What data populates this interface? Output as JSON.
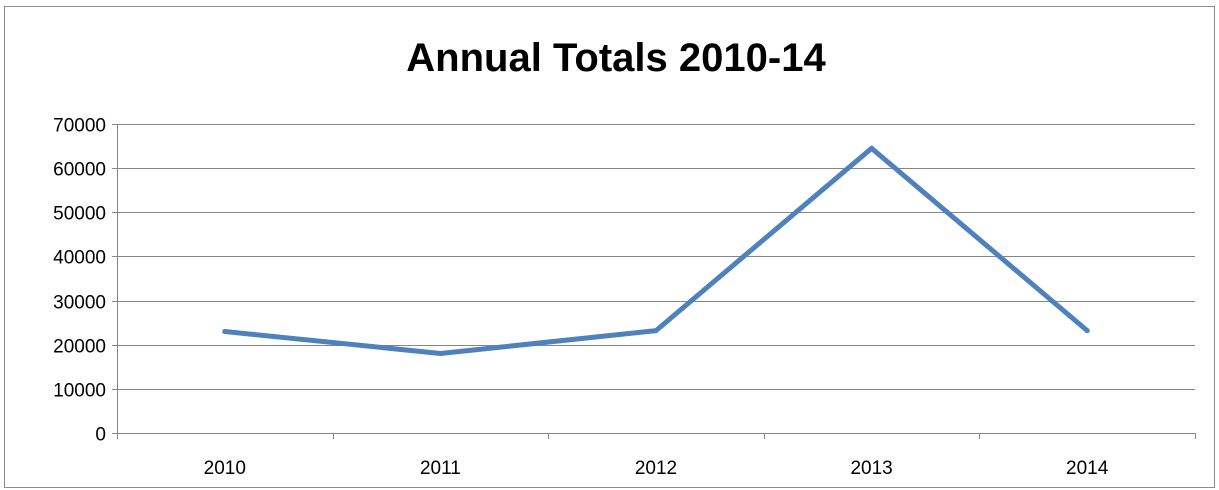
{
  "chart_data": {
    "type": "line",
    "title": "Annual Totals 2010-14",
    "xlabel": "",
    "ylabel": "",
    "categories": [
      "2010",
      "2011",
      "2012",
      "2013",
      "2014"
    ],
    "series": [
      {
        "values": [
          23000,
          18000,
          23200,
          64500,
          23200
        ],
        "color": "#4f81bd"
      }
    ],
    "ylim": [
      0,
      70000
    ],
    "y_ticks": [
      0,
      10000,
      20000,
      30000,
      40000,
      50000,
      60000,
      70000
    ],
    "y_tick_labels": [
      "0",
      "10000",
      "20000",
      "30000",
      "40000",
      "50000",
      "60000",
      "70000"
    ],
    "grid": true,
    "legend": "none"
  }
}
